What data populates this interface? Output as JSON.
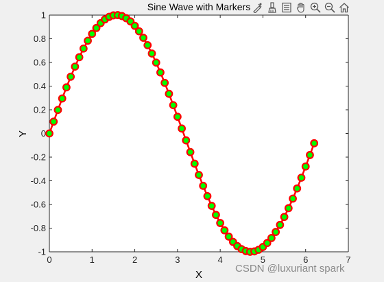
{
  "chart_data": {
    "type": "line",
    "title": "Sine Wave with Markers",
    "xlabel": "X",
    "ylabel": "Y",
    "xlim": [
      0,
      7
    ],
    "ylim": [
      -1,
      1
    ],
    "xticks": [
      "0",
      "1",
      "2",
      "3",
      "4",
      "5",
      "6",
      "7"
    ],
    "yticks": [
      "-1",
      "-0.8",
      "-0.6",
      "-0.4",
      "-0.2",
      "0",
      "0.2",
      "0.4",
      "0.6",
      "0.8",
      "1"
    ],
    "grid": false,
    "line_color": "#ff0000",
    "marker_face_color": "#00ff00",
    "marker_edge_color": "#ff0000",
    "marker": "circle",
    "series": [
      {
        "x": [
          0,
          0.1,
          0.2,
          0.3,
          0.4,
          0.5,
          0.6,
          0.7,
          0.8,
          0.9,
          1,
          1.1,
          1.2,
          1.3,
          1.4,
          1.5,
          1.6,
          1.7,
          1.8,
          1.9,
          2,
          2.1,
          2.2,
          2.3,
          2.4,
          2.5,
          2.6,
          2.7,
          2.8,
          2.9,
          3,
          3.1,
          3.2,
          3.3,
          3.4,
          3.5,
          3.6,
          3.7,
          3.8,
          3.9,
          4,
          4.1,
          4.2,
          4.3,
          4.4,
          4.5,
          4.6,
          4.7,
          4.8,
          4.9,
          5,
          5.1,
          5.2,
          5.3,
          5.4,
          5.5,
          5.6,
          5.7,
          5.8,
          5.9,
          6,
          6.1,
          6.2
        ],
        "y": [
          0,
          0.0998,
          0.1987,
          0.2955,
          0.3894,
          0.4794,
          0.5646,
          0.6442,
          0.7174,
          0.7833,
          0.8415,
          0.8912,
          0.932,
          0.9636,
          0.9854,
          0.9975,
          0.9996,
          0.9917,
          0.9738,
          0.9463,
          0.9093,
          0.8632,
          0.8085,
          0.7457,
          0.6755,
          0.5985,
          0.5155,
          0.4274,
          0.335,
          0.2392,
          0.1411,
          0.0416,
          -0.0584,
          -0.1577,
          -0.2555,
          -0.3508,
          -0.4425,
          -0.5298,
          -0.6119,
          -0.6878,
          -0.7568,
          -0.8183,
          -0.8716,
          -0.9162,
          -0.9516,
          -0.9775,
          -0.9937,
          -0.9999,
          -0.9962,
          -0.9825,
          -0.9589,
          -0.9258,
          -0.8835,
          -0.8323,
          -0.7728,
          -0.7055,
          -0.6313,
          -0.5507,
          -0.4646,
          -0.3739,
          -0.2794,
          -0.1822,
          -0.0831
        ]
      }
    ]
  },
  "toolbar": {
    "icons": [
      "data-tips-icon",
      "brush-icon",
      "legend-icon",
      "pan-icon",
      "zoom-in-icon",
      "zoom-out-icon",
      "home-icon"
    ]
  },
  "watermark": "CSDN @luxuriant spark"
}
